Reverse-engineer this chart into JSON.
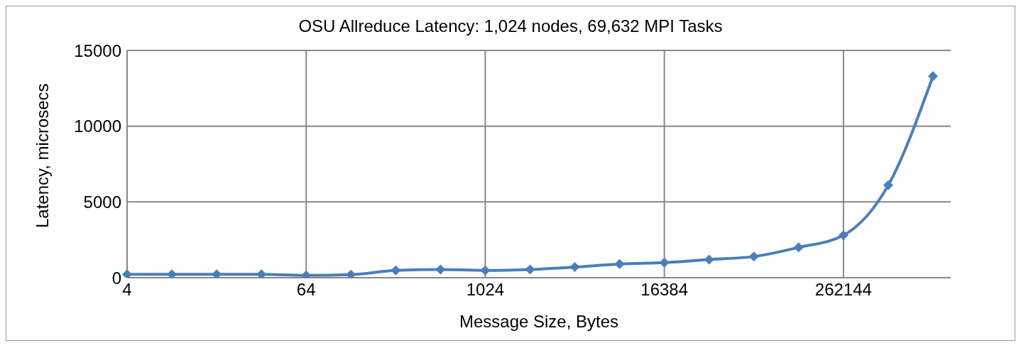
{
  "chart_data": {
    "type": "line",
    "title": "OSU Allreduce Latency: 1,024 nodes,  69,632 MPI Tasks",
    "xlabel": "Message Size, Bytes",
    "ylabel": "Latency, microsecs",
    "categories": [
      "4",
      null,
      null,
      null,
      "64",
      null,
      null,
      null,
      "1024",
      null,
      null,
      null,
      "16384",
      null,
      null,
      null,
      "262144",
      null,
      null
    ],
    "series": [
      {
        "color": "#4a7ebb",
        "values": [
          220,
          220,
          220,
          220,
          150,
          200,
          480,
          540,
          480,
          540,
          700,
          900,
          1000,
          1200,
          1400,
          2000,
          2800,
          6100,
          13300
        ]
      }
    ],
    "ylim": [
      0,
      15000
    ],
    "yticks": [
      0,
      5000,
      10000,
      15000
    ],
    "grid": true,
    "marker": "diamond",
    "line_style": "solid"
  }
}
